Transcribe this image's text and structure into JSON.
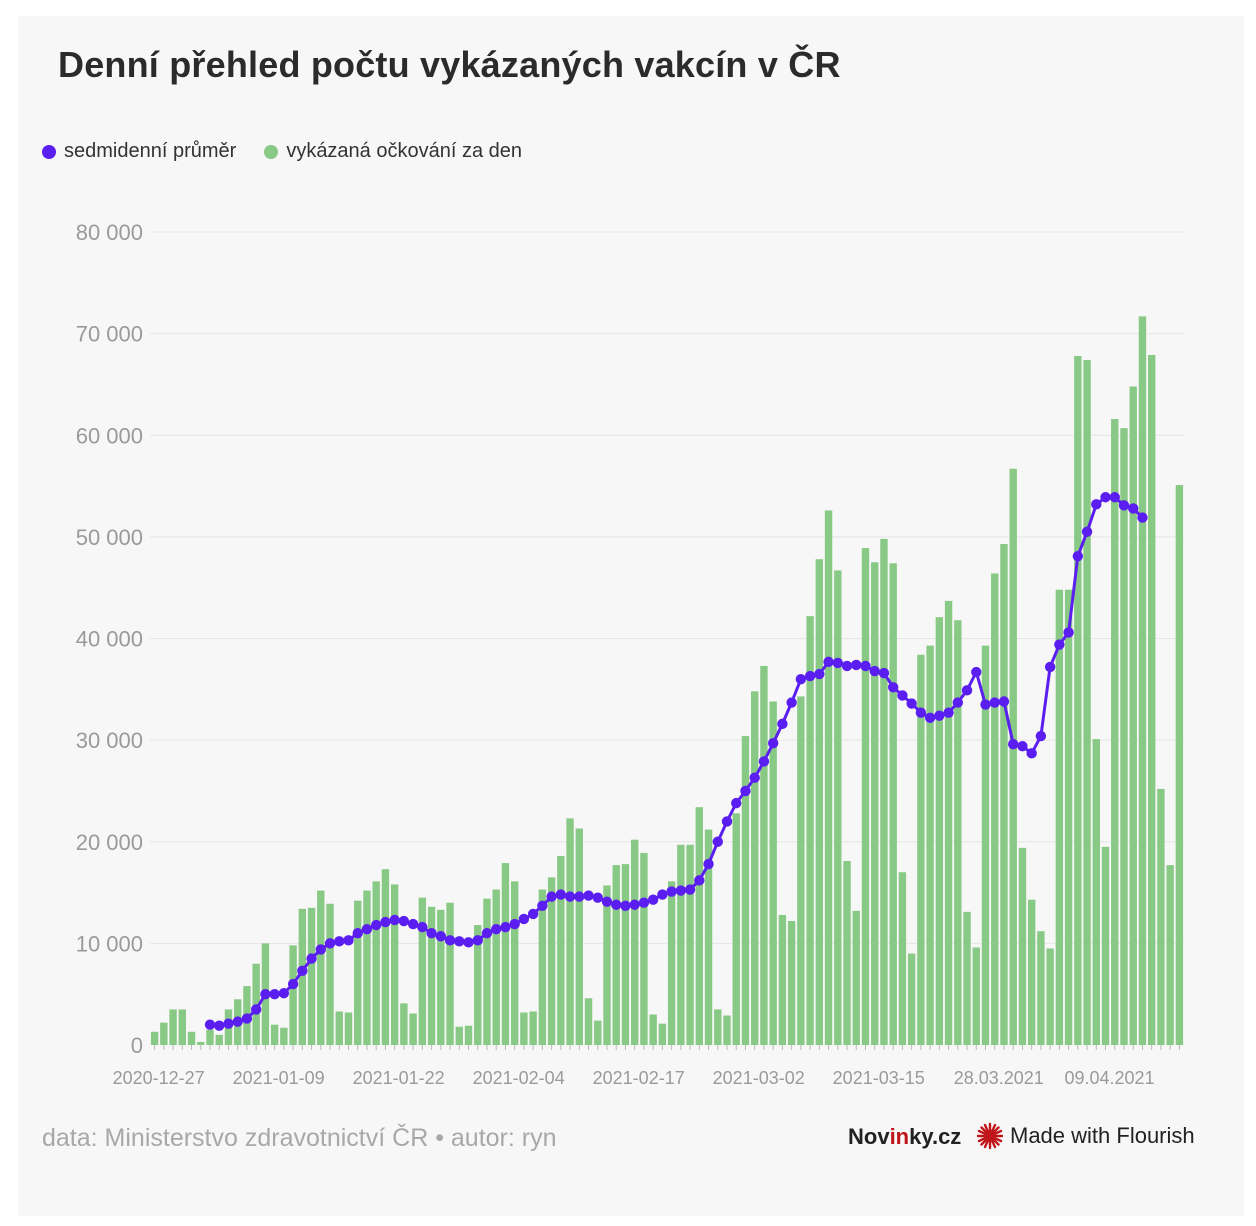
{
  "header": {
    "title": "Denní přehled počtu vykázaných vakcín v ČR"
  },
  "legend": {
    "line_label": "sedmidenní průměr",
    "bar_label": "vykázaná očkování za den"
  },
  "footer": {
    "source": "data: Ministerstvo zdravotnictví ČR • autor: ryn",
    "brand_prefix": "Nov",
    "brand_highlight": "in",
    "brand_suffix": "ky.cz",
    "flourish": "Made with Flourish"
  },
  "colors": {
    "bar": "#88c985",
    "line": "#5a1ff0",
    "grid": "#e6e6e6",
    "axis_text": "#9a9a9a"
  },
  "chart_data": {
    "type": "bar",
    "title": "Denní přehled počtu vykázaných vakcín v ČR",
    "ylim": [
      0,
      80000
    ],
    "yticks": [
      0,
      10000,
      20000,
      30000,
      40000,
      50000,
      60000,
      70000,
      80000
    ],
    "ytick_labels": [
      "0",
      "10 000",
      "20 000",
      "30 000",
      "40 000",
      "50 000",
      "60 000",
      "70 000",
      "80 000"
    ],
    "xtick_labels": [
      {
        "index": 0,
        "label": "2020-12-27"
      },
      {
        "index": 13,
        "label": "2021-01-09"
      },
      {
        "index": 26,
        "label": "2021-01-22"
      },
      {
        "index": 39,
        "label": "2021-02-04"
      },
      {
        "index": 52,
        "label": "2021-02-17"
      },
      {
        "index": 65,
        "label": "2021-03-02"
      },
      {
        "index": 78,
        "label": "2021-03-15"
      },
      {
        "index": 91,
        "label": "28.03.2021"
      },
      {
        "index": 103,
        "label": "09.04.2021"
      }
    ],
    "series": [
      {
        "name": "vykázaná očkování za den",
        "type": "bar",
        "values": [
          1300,
          2200,
          3500,
          3500,
          1300,
          300,
          1500,
          1000,
          3500,
          4500,
          5800,
          8000,
          10000,
          2000,
          1700,
          9800,
          13400,
          13500,
          15200,
          13900,
          3300,
          3200,
          14200,
          15200,
          16100,
          17300,
          15800,
          4100,
          3100,
          14500,
          13600,
          13300,
          14000,
          1800,
          1900,
          11800,
          14400,
          15300,
          17900,
          16100,
          3200,
          3300,
          15300,
          16500,
          18600,
          22300,
          21300,
          4600,
          2400,
          15700,
          17700,
          17800,
          20200,
          18900,
          3000,
          2100,
          16100,
          19700,
          19700,
          23400,
          21200,
          3500,
          2900,
          22800,
          30400,
          34800,
          37300,
          33800,
          12800,
          12200,
          34300,
          42200,
          47800,
          52600,
          46700,
          18100,
          13200,
          48900,
          47500,
          49800,
          47400,
          17000,
          9000,
          38400,
          39300,
          42100,
          43700,
          41800,
          13100,
          9600,
          39300,
          46400,
          49300,
          56700,
          19400,
          14300,
          11200,
          9500,
          44800,
          44800,
          67800,
          67400,
          30100,
          19500,
          61600,
          60700,
          64800,
          71700,
          67900,
          25200,
          17700,
          55100
        ]
      },
      {
        "name": "sedmidenní průměr",
        "type": "line",
        "start_index": 6,
        "values": [
          2000,
          1900,
          2100,
          2300,
          2600,
          3500,
          5000,
          5000,
          5100,
          6000,
          7300,
          8500,
          9400,
          10000,
          10200,
          10300,
          11000,
          11400,
          11800,
          12100,
          12300,
          12200,
          11900,
          11600,
          11000,
          10700,
          10300,
          10200,
          10100,
          10300,
          11000,
          11400,
          11600,
          11900,
          12400,
          12900,
          13700,
          14600,
          14800,
          14600,
          14600,
          14700,
          14500,
          14100,
          13800,
          13700,
          13800,
          14000,
          14300,
          14800,
          15100,
          15200,
          15300,
          16200,
          17800,
          20000,
          22000,
          23800,
          25000,
          26300,
          27900,
          29700,
          31600,
          33700,
          36000,
          36300,
          36500,
          37700,
          37600,
          37300,
          37400,
          37300,
          36800,
          36600,
          35200,
          34400,
          33600,
          32700,
          32200,
          32400,
          32700,
          33700,
          34900,
          36700,
          33500,
          33700,
          33800,
          29600,
          29400,
          28700,
          30400,
          37200,
          39400,
          40600,
          48100,
          50500,
          53200,
          53900,
          53900,
          53100,
          52800,
          51900
        ]
      }
    ]
  }
}
